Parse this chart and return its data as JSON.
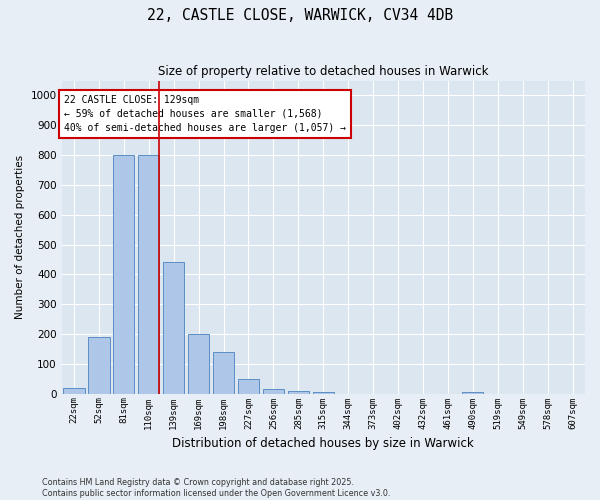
{
  "title_line1": "22, CASTLE CLOSE, WARWICK, CV34 4DB",
  "title_line2": "Size of property relative to detached houses in Warwick",
  "xlabel": "Distribution of detached houses by size in Warwick",
  "ylabel": "Number of detached properties",
  "annotation_line1": "22 CASTLE CLOSE: 129sqm",
  "annotation_line2": "← 59% of detached houses are smaller (1,568)",
  "annotation_line3": "40% of semi-detached houses are larger (1,057) →",
  "bar_labels": [
    "22sqm",
    "52sqm",
    "81sqm",
    "110sqm",
    "139sqm",
    "169sqm",
    "198sqm",
    "227sqm",
    "256sqm",
    "285sqm",
    "315sqm",
    "344sqm",
    "373sqm",
    "402sqm",
    "432sqm",
    "461sqm",
    "490sqm",
    "519sqm",
    "549sqm",
    "578sqm",
    "607sqm"
  ],
  "bar_values": [
    20,
    190,
    800,
    800,
    440,
    200,
    140,
    50,
    15,
    10,
    5,
    0,
    0,
    0,
    0,
    0,
    5,
    0,
    0,
    0,
    0
  ],
  "bar_color": "#aec6e8",
  "bar_edge_color": "#5b8ec4",
  "highlight_index": 3,
  "highlight_line_color": "#cc0000",
  "ylim": [
    0,
    1050
  ],
  "yticks": [
    0,
    100,
    200,
    300,
    400,
    500,
    600,
    700,
    800,
    900,
    1000
  ],
  "background_color": "#dce6f0",
  "fig_background_color": "#e8eef5",
  "grid_color": "#ffffff",
  "footer_line1": "Contains HM Land Registry data © Crown copyright and database right 2025.",
  "footer_line2": "Contains public sector information licensed under the Open Government Licence v3.0."
}
